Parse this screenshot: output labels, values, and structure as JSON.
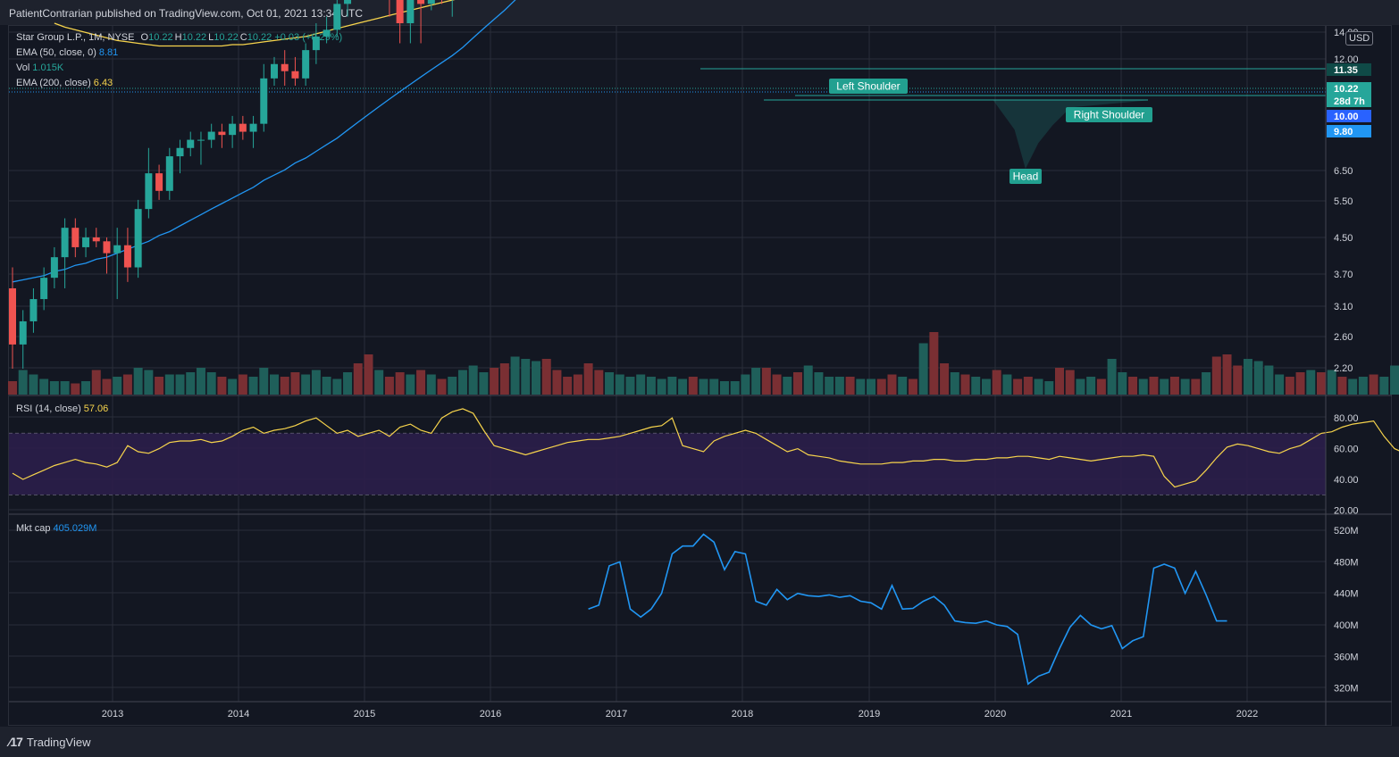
{
  "header": {
    "publisher_line": "PatientContrarian published on TradingView.com, Oct 01, 2021 13:34 UTC"
  },
  "footer": {
    "brand": "TradingView"
  },
  "legend": {
    "symbol": "Star Group L.P., 1M, NYSE",
    "ohlc": [
      {
        "key": "O",
        "val": "10.22"
      },
      {
        "key": "H",
        "val": "10.22"
      },
      {
        "key": "L",
        "val": "10.22"
      },
      {
        "key": "C",
        "val": "10.22"
      }
    ],
    "change": "+0.03 (+0.29%)",
    "ema50_label": "EMA (50, close, 0)",
    "ema50_value": "8.81",
    "vol_label": "Vol",
    "vol_value": "1.015K",
    "ema200_label": "EMA (200, close)",
    "ema200_value": "6.43",
    "rsi_label": "RSI (14, close)",
    "rsi_value": "57.06",
    "mktcap_label": "Mkt cap",
    "mktcap_value": "405.029M"
  },
  "currency": "USD",
  "annotations": {
    "left_shoulder": "Left Shoulder",
    "head": "Head",
    "right_shoulder": "Right Shoulder"
  },
  "price_tags": [
    {
      "text": "11.35",
      "color": "#0f4a47"
    },
    {
      "text": "10.22",
      "color": "#26a69a"
    },
    {
      "text": "28d 7h",
      "color": "#26a69a"
    },
    {
      "text": "10.00",
      "color": "#2962ff"
    },
    {
      "text": "9.80",
      "color": "#2196f3"
    }
  ],
  "colors": {
    "up": "#26a69a",
    "down": "#ef5350",
    "ema50": "#2196f3",
    "ema200": "#f7d44c",
    "rsi": "#f7d44c",
    "mktcap": "#2196f3",
    "rsi_band": "#2b1e4a",
    "grid": "#2a2e39"
  },
  "chart_data": {
    "type": "candlestick",
    "scale": "log",
    "ylabel": "USD",
    "price_ticks": [
      "14.00",
      "12.00",
      "6.50",
      "5.50",
      "4.50",
      "3.70",
      "3.10",
      "2.60",
      "2.20"
    ],
    "x_ticks": [
      "2013",
      "2014",
      "2015",
      "2016",
      "2017",
      "2018",
      "2019",
      "2020",
      "2021",
      "2022"
    ],
    "candles": [
      [
        2.55,
        2.65,
        2.2,
        2.3
      ],
      [
        2.3,
        2.45,
        2.2,
        2.4
      ],
      [
        2.4,
        2.55,
        2.35,
        2.5
      ],
      [
        2.5,
        2.65,
        2.45,
        2.6
      ],
      [
        2.6,
        2.75,
        2.55,
        2.7
      ],
      [
        2.7,
        2.9,
        2.55,
        2.85
      ],
      [
        2.85,
        2.9,
        2.7,
        2.75
      ],
      [
        2.75,
        2.85,
        2.7,
        2.8
      ],
      [
        2.8,
        2.85,
        2.75,
        2.78
      ],
      [
        2.78,
        2.8,
        2.62,
        2.72
      ],
      [
        2.72,
        2.85,
        2.5,
        2.76
      ],
      [
        2.76,
        2.85,
        2.58,
        2.65
      ],
      [
        2.65,
        3.0,
        2.6,
        2.95
      ],
      [
        2.95,
        3.3,
        2.9,
        3.15
      ],
      [
        3.15,
        3.2,
        3.0,
        3.05
      ],
      [
        3.05,
        3.3,
        3.0,
        3.25
      ],
      [
        3.25,
        3.35,
        3.15,
        3.3
      ],
      [
        3.3,
        3.4,
        3.25,
        3.35
      ],
      [
        3.35,
        3.4,
        3.2,
        3.35
      ],
      [
        3.35,
        3.45,
        3.3,
        3.4
      ],
      [
        3.4,
        3.45,
        3.3,
        3.38
      ],
      [
        3.38,
        3.5,
        3.3,
        3.45
      ],
      [
        3.45,
        3.5,
        3.35,
        3.4
      ],
      [
        3.4,
        3.5,
        3.3,
        3.45
      ],
      [
        3.45,
        3.85,
        3.4,
        3.75
      ],
      [
        3.75,
        3.9,
        3.7,
        3.85
      ],
      [
        3.85,
        3.95,
        3.7,
        3.8
      ],
      [
        3.8,
        3.9,
        3.7,
        3.75
      ],
      [
        3.75,
        4.0,
        3.7,
        3.95
      ],
      [
        3.95,
        4.15,
        3.85,
        4.05
      ],
      [
        4.05,
        4.2,
        4.0,
        4.1
      ],
      [
        4.1,
        4.4,
        4.05,
        4.3
      ],
      [
        4.3,
        4.6,
        4.2,
        4.55
      ],
      [
        4.55,
        4.9,
        4.45,
        4.5
      ],
      [
        4.5,
        4.6,
        4.4,
        4.45
      ],
      [
        4.45,
        4.55,
        4.35,
        4.5
      ],
      [
        4.5,
        4.55,
        4.2,
        4.4
      ],
      [
        4.4,
        4.45,
        4.0,
        4.15
      ],
      [
        4.15,
        4.4,
        4.0,
        4.35
      ],
      [
        4.35,
        4.5,
        4.0,
        4.3
      ],
      [
        4.3,
        4.55,
        4.25,
        4.5
      ],
      [
        4.5,
        4.55,
        4.3,
        4.4
      ],
      [
        4.4,
        4.6,
        4.2,
        4.55
      ],
      [
        4.55,
        4.9,
        4.5,
        4.85
      ],
      [
        4.85,
        5.5,
        4.8,
        5.45
      ],
      [
        5.45,
        5.7,
        5.2,
        5.5
      ],
      [
        5.5,
        5.6,
        5.3,
        5.45
      ],
      [
        5.45,
        5.6,
        5.2,
        5.3
      ],
      [
        5.3,
        6.4,
        5.25,
        6.3
      ],
      [
        6.3,
        6.9,
        6.2,
        6.8
      ],
      [
        6.8,
        7.35,
        6.5,
        7.25
      ],
      [
        7.25,
        7.35,
        6.6,
        6.7
      ],
      [
        6.7,
        7.0,
        6.5,
        6.6
      ],
      [
        6.6,
        6.75,
        6.3,
        6.5
      ],
      [
        6.5,
        6.6,
        5.9,
        6.0
      ],
      [
        6.0,
        6.15,
        5.7,
        5.8
      ],
      [
        5.8,
        5.9,
        5.2,
        5.6
      ],
      [
        5.6,
        5.9,
        5.4,
        5.8
      ],
      [
        5.8,
        6.0,
        5.7,
        5.95
      ],
      [
        5.95,
        6.3,
        5.9,
        6.2
      ],
      [
        6.2,
        6.5,
        6.0,
        6.4
      ],
      [
        6.4,
        6.7,
        6.3,
        6.6
      ],
      [
        6.6,
        6.8,
        6.4,
        6.7
      ],
      [
        6.7,
        6.9,
        6.5,
        6.8
      ],
      [
        6.8,
        7.1,
        6.7,
        7.0
      ],
      [
        7.0,
        7.15,
        6.85,
        6.95
      ],
      [
        6.95,
        7.2,
        6.85,
        7.1
      ],
      [
        7.1,
        7.6,
        7.05,
        7.5
      ],
      [
        7.5,
        7.9,
        7.4,
        7.7
      ],
      [
        7.7,
        7.95,
        7.55,
        7.85
      ],
      [
        7.85,
        8.9,
        7.8,
        8.7
      ],
      [
        8.7,
        9.2,
        8.6,
        9.1
      ],
      [
        9.1,
        9.15,
        7.8,
        8.0
      ],
      [
        8.0,
        8.1,
        7.4,
        7.6
      ],
      [
        7.6,
        7.9,
        7.4,
        7.7
      ],
      [
        7.7,
        7.85,
        7.3,
        7.5
      ],
      [
        7.5,
        8.2,
        7.4,
        8.1
      ],
      [
        8.1,
        8.5,
        8.0,
        8.4
      ],
      [
        8.4,
        9.2,
        8.3,
        9.1
      ],
      [
        9.1,
        9.6,
        8.9,
        9.5
      ],
      [
        9.5,
        9.7,
        9.1,
        9.3
      ],
      [
        9.3,
        9.6,
        9.2,
        9.4
      ],
      [
        9.4,
        9.7,
        9.3,
        9.6
      ],
      [
        9.6,
        9.75,
        9.35,
        9.45
      ],
      [
        9.45,
        9.65,
        9.0,
        9.1
      ],
      [
        9.1,
        9.45,
        8.9,
        9.35
      ],
      [
        9.35,
        9.5,
        9.1,
        9.3
      ],
      [
        9.3,
        9.65,
        9.2,
        9.55
      ],
      [
        9.55,
        9.65,
        7.7,
        8.1
      ],
      [
        8.1,
        8.5,
        7.5,
        8.0
      ],
      [
        8.0,
        8.4,
        7.9,
        8.3
      ],
      [
        8.3,
        8.55,
        8.0,
        8.1
      ],
      [
        8.1,
        8.5,
        8.0,
        8.4
      ],
      [
        8.4,
        8.7,
        8.3,
        8.5
      ],
      [
        8.5,
        8.65,
        8.3,
        8.4
      ],
      [
        8.4,
        8.7,
        8.1,
        8.6
      ],
      [
        8.6,
        8.7,
        8.4,
        8.55
      ],
      [
        8.55,
        8.75,
        8.35,
        8.45
      ],
      [
        8.45,
        8.65,
        8.3,
        8.55
      ],
      [
        8.55,
        8.8,
        8.4,
        8.7
      ],
      [
        8.7,
        8.8,
        8.5,
        8.6
      ],
      [
        8.6,
        8.7,
        8.0,
        8.3
      ],
      [
        8.3,
        8.7,
        8.2,
        8.6
      ],
      [
        8.6,
        8.9,
        8.5,
        8.8
      ],
      [
        8.8,
        8.9,
        8.55,
        8.6
      ],
      [
        8.6,
        9.0,
        8.5,
        8.9
      ],
      [
        8.9,
        9.2,
        8.8,
        9.1
      ],
      [
        9.1,
        9.2,
        8.8,
        9.0
      ],
      [
        9.0,
        9.3,
        8.9,
        9.2
      ],
      [
        9.2,
        9.3,
        8.8,
        8.9
      ],
      [
        8.9,
        9.1,
        8.7,
        9.0
      ],
      [
        9.0,
        9.15,
        8.8,
        8.95
      ],
      [
        8.95,
        9.2,
        8.85,
        9.1
      ],
      [
        9.1,
        9.25,
        8.95,
        9.0
      ],
      [
        9.0,
        9.2,
        8.9,
        9.1
      ],
      [
        9.1,
        9.3,
        8.6,
        8.8
      ],
      [
        8.8,
        8.9,
        5.7,
        6.8
      ],
      [
        6.8,
        7.0,
        6.2,
        6.5
      ],
      [
        6.5,
        7.3,
        6.4,
        7.2
      ],
      [
        7.2,
        7.8,
        7.1,
        7.6
      ],
      [
        7.6,
        8.8,
        7.5,
        8.7
      ],
      [
        8.7,
        9.8,
        8.6,
        9.6
      ],
      [
        9.6,
        9.8,
        9.4,
        9.5
      ],
      [
        9.5,
        9.7,
        9.3,
        9.4
      ],
      [
        9.4,
        9.75,
        9.35,
        9.6
      ],
      [
        9.6,
        9.7,
        9.3,
        9.35
      ],
      [
        9.35,
        9.5,
        9.2,
        9.45
      ],
      [
        9.45,
        9.55,
        9.3,
        9.4
      ],
      [
        9.4,
        9.6,
        9.3,
        9.55
      ],
      [
        9.55,
        10.8,
        9.5,
        10.6
      ],
      [
        10.6,
        10.9,
        10.2,
        10.4
      ],
      [
        10.4,
        12.0,
        10.3,
        10.7
      ],
      [
        10.7,
        11.3,
        10.5,
        11.1
      ],
      [
        11.1,
        11.8,
        10.9,
        11.7
      ],
      [
        11.7,
        12.0,
        11.0,
        11.3
      ],
      [
        11.3,
        11.4,
        10.8,
        10.9
      ],
      [
        10.9,
        11.0,
        10.0,
        10.22
      ],
      [
        10.22,
        10.22,
        10.22,
        10.22
      ]
    ],
    "volume_relative": [
      0.3,
      0.55,
      0.45,
      0.35,
      0.3,
      0.3,
      0.25,
      0.3,
      0.55,
      0.35,
      0.4,
      0.45,
      0.6,
      0.55,
      0.4,
      0.45,
      0.45,
      0.5,
      0.6,
      0.5,
      0.4,
      0.35,
      0.45,
      0.4,
      0.6,
      0.45,
      0.4,
      0.5,
      0.45,
      0.55,
      0.4,
      0.35,
      0.5,
      0.7,
      0.9,
      0.55,
      0.4,
      0.5,
      0.45,
      0.55,
      0.45,
      0.35,
      0.4,
      0.55,
      0.65,
      0.5,
      0.6,
      0.7,
      0.85,
      0.8,
      0.75,
      0.8,
      0.55,
      0.4,
      0.45,
      0.7,
      0.55,
      0.5,
      0.45,
      0.4,
      0.45,
      0.4,
      0.35,
      0.4,
      0.35,
      0.4,
      0.35,
      0.35,
      0.3,
      0.3,
      0.45,
      0.6,
      0.6,
      0.45,
      0.4,
      0.5,
      0.65,
      0.5,
      0.4,
      0.4,
      0.4,
      0.35,
      0.35,
      0.35,
      0.45,
      0.4,
      0.35,
      1.15,
      1.4,
      0.7,
      0.5,
      0.45,
      0.4,
      0.35,
      0.55,
      0.45,
      0.35,
      0.4,
      0.35,
      0.3,
      0.6,
      0.55,
      0.35,
      0.4,
      0.35,
      0.8,
      0.5,
      0.4,
      0.35,
      0.4,
      0.35,
      0.4,
      0.35,
      0.35,
      0.5,
      0.85,
      0.9,
      0.65,
      0.8,
      0.75,
      0.65,
      0.45,
      0.4,
      0.5,
      0.55,
      0.5,
      0.55,
      0.4,
      0.35,
      0.4,
      0.45,
      0.4,
      0.65,
      0.5,
      0.5,
      0.45,
      0.5,
      0.02
    ],
    "ema50": [
      2.58,
      2.59,
      2.6,
      2.61,
      2.63,
      2.64,
      2.66,
      2.67,
      2.69,
      2.7,
      2.72,
      2.74,
      2.76,
      2.78,
      2.81,
      2.83,
      2.86,
      2.89,
      2.92,
      2.95,
      2.98,
      3.01,
      3.04,
      3.07,
      3.11,
      3.14,
      3.17,
      3.21,
      3.24,
      3.28,
      3.32,
      3.36,
      3.41,
      3.46,
      3.51,
      3.56,
      3.61,
      3.66,
      3.71,
      3.76,
      3.81,
      3.86,
      3.91,
      3.97,
      4.04,
      4.11,
      4.18,
      4.25,
      4.33,
      4.42,
      4.51,
      4.59,
      4.67,
      4.74,
      4.81,
      4.87,
      4.93,
      4.99,
      5.05,
      5.11,
      5.18,
      5.25,
      5.32,
      5.39,
      5.46,
      5.53,
      5.6,
      5.68,
      5.76,
      5.84,
      5.95,
      6.06,
      6.15,
      6.24,
      6.32,
      6.4,
      6.49,
      6.58,
      6.69,
      6.8,
      6.91,
      7.01,
      7.11,
      7.2,
      7.28,
      7.35,
      7.42,
      7.49,
      7.53,
      7.57,
      7.61,
      7.65,
      7.69,
      7.73,
      7.77,
      7.8,
      7.84,
      7.87,
      7.9,
      7.93,
      7.96,
      7.98,
      8.0,
      8.02,
      8.04,
      8.06,
      8.08,
      8.1,
      8.12,
      8.14,
      8.15,
      8.17,
      8.18,
      8.19,
      8.2,
      8.22,
      8.23,
      8.24,
      8.25,
      8.27,
      8.29,
      8.31,
      8.33,
      8.35,
      8.37,
      8.39,
      8.41,
      8.43,
      8.46,
      8.49,
      8.53,
      8.57,
      8.62,
      8.67,
      8.72,
      8.77,
      8.81
    ],
    "ema200": [
      4.15,
      4.12,
      4.1,
      4.08,
      4.06,
      4.04,
      4.02,
      4.01,
      4.0,
      3.99,
      3.98,
      3.98,
      3.98,
      3.98,
      3.98,
      3.98,
      3.98,
      3.99,
      3.99,
      4.0,
      4.01,
      4.02,
      4.03,
      4.04,
      4.05,
      4.07,
      4.09,
      4.11,
      4.13,
      4.15,
      4.17,
      4.19,
      4.21,
      4.23,
      4.25,
      4.27,
      4.29,
      4.31,
      4.33,
      4.35,
      4.37,
      4.39,
      4.41,
      4.44,
      4.47,
      4.5,
      4.53,
      4.56,
      4.59,
      4.62,
      4.65,
      4.68,
      4.71,
      4.74,
      4.77,
      4.8,
      4.83,
      4.86,
      4.89,
      4.92,
      4.95,
      4.98,
      5.01,
      5.04,
      5.07,
      5.1,
      5.13,
      5.16,
      5.19,
      5.22,
      5.25,
      5.28,
      5.31,
      5.34,
      5.37,
      5.4,
      5.43,
      5.46,
      5.49,
      5.52,
      5.55,
      5.58,
      5.61,
      5.64,
      5.67,
      5.7,
      5.73,
      5.76,
      5.79,
      5.82,
      5.85,
      5.88,
      5.91,
      5.94,
      5.97,
      6.0,
      6.03,
      6.06,
      6.09,
      6.12,
      6.15,
      6.18,
      6.21,
      6.24,
      6.27,
      6.3,
      6.33,
      6.36,
      6.39,
      6.42,
      6.43
    ],
    "rsi": {
      "levels": [
        70,
        30
      ],
      "ticks": [
        "80.00",
        "60.00",
        "40.00",
        "20.00"
      ],
      "values": [
        44,
        40,
        43,
        46,
        49,
        51,
        53,
        51,
        50,
        48,
        51,
        62,
        58,
        57,
        60,
        64,
        65,
        65,
        66,
        64,
        65,
        68,
        72,
        74,
        70,
        72,
        73,
        75,
        78,
        80,
        75,
        70,
        72,
        68,
        70,
        72,
        68,
        74,
        76,
        72,
        70,
        80,
        84,
        86,
        83,
        72,
        62,
        60,
        58,
        56,
        58,
        60,
        62,
        64,
        65,
        66,
        66,
        67,
        68,
        70,
        72,
        74,
        75,
        80,
        62,
        60,
        58,
        65,
        68,
        70,
        72,
        70,
        66,
        62,
        58,
        60,
        56,
        55,
        54,
        52,
        51,
        50,
        50,
        50,
        51,
        51,
        52,
        52,
        53,
        53,
        52,
        52,
        53,
        53,
        54,
        54,
        55,
        55,
        54,
        53,
        55,
        54,
        53,
        52,
        53,
        54,
        55,
        55,
        56,
        55,
        42,
        35,
        37,
        39,
        46,
        54,
        61,
        63,
        62,
        60,
        58,
        57,
        60,
        62,
        66,
        70,
        71,
        74,
        76,
        77,
        78,
        68,
        60,
        57,
        57
      ]
    },
    "mktcap": {
      "ticks": [
        "520M",
        "480M",
        "440M",
        "400M",
        "360M",
        "320M"
      ],
      "values": [
        420,
        425,
        475,
        480,
        420,
        410,
        420,
        440,
        490,
        500,
        500,
        515,
        505,
        470,
        493,
        490,
        430,
        425,
        445,
        432,
        440,
        437,
        436,
        438,
        435,
        437,
        430,
        428,
        420,
        450,
        420,
        421,
        430,
        436,
        425,
        405,
        403,
        402,
        405,
        400,
        398,
        388,
        325,
        335,
        340,
        370,
        397,
        412,
        400,
        395,
        399,
        370,
        380,
        385,
        472,
        477,
        472,
        440,
        468,
        438,
        405,
        405
      ]
    }
  }
}
